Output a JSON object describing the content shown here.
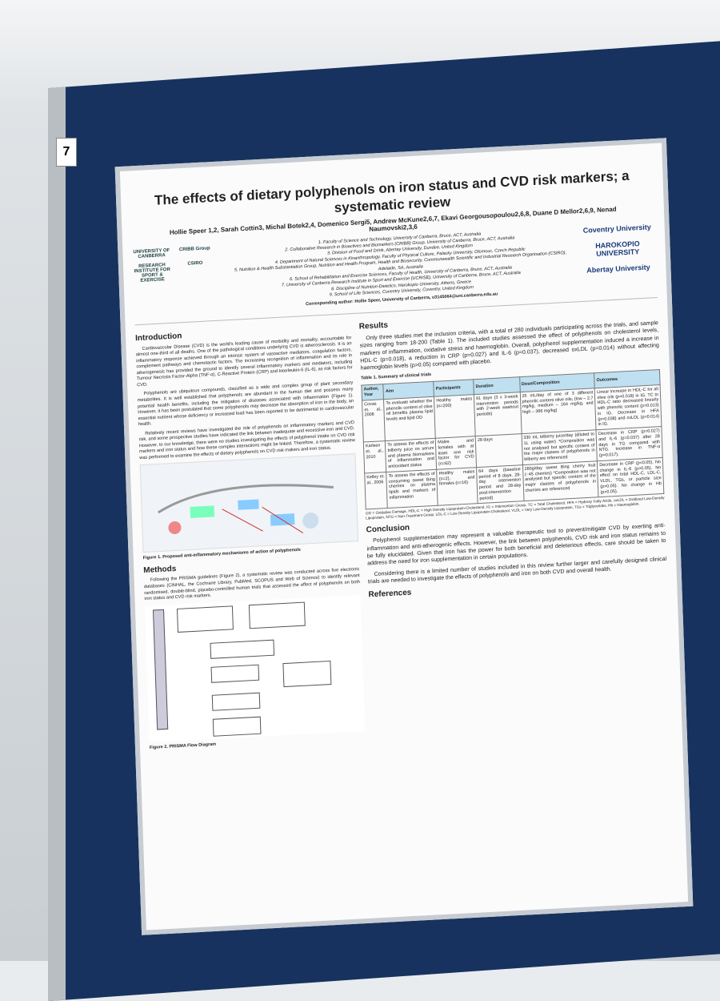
{
  "board_number": "7",
  "header": {
    "title": "The effects of dietary polyphenols on iron status and CVD risk markers; a systematic review",
    "authors": "Hollie Speer 1,2, Sarah Cottin3, Michal Botek2,4, Domenico Sergi5, Andrew McKune2,6,7, Ekavi Georgousopoulou2,6,8, Duane D Mellor2,6,9, Nenad Naumovski2,3,6",
    "affiliations": [
      "1. Faculty of Science and Technology, University of Canberra, Bruce, ACT, Australia",
      "2. Collaborative Research in Bioactives and Biomarkers (CRIBB) Group, University of Canberra, Bruce, ACT, Australia",
      "3. Division of Food and Drink, Abertay University, Dundee, United Kingdom",
      "4. Department of Natural Sciences in Kinanthropology, Faculty of Physical Culture, Palacky University, Olomouc, Czech Republic",
      "5. Nutrition & Health Substantiation Group, Nutrition and Health Program, Health and Biosecurity, Commonwealth Scientific and Industrial Research Organisation (CSIRO), Adelaide, SA, Australia",
      "6. School of Rehabilitation and Exercise Sciences, Faculty of Health, University of Canberra, Bruce, ACT, Australia",
      "7. University of Canberra Research Institute in Sport and Exercise (UCRISE), University of Canberra, Bruce, ACT, Australia",
      "8. Discipline of Nutrition-Dietetics, Harokopio University, Athens, Greece",
      "9. School of Life Sciences, Coventry University, Coventry, United Kingdom"
    ],
    "corresponding": "Corresponding author: Hollie Speer, University of Canberra, u3145064@uni.canberra.edu.au",
    "logos_left": [
      "UNIVERSITY OF CANBERRA",
      "CRIBB Group",
      "RESEARCH INSTITUTE FOR SPORT & EXERCISE",
      "CSIRO"
    ],
    "logos_right": [
      "Coventry University",
      "HAROKOPIO UNIVERSITY",
      "Abertay University"
    ]
  },
  "introduction": {
    "heading": "Introduction",
    "paragraphs": [
      "Cardiovascular Disease (CVD) is the world's leading cause of morbidity and mortality, accountable for almost one-third of all deaths. One of the pathological conditions underlying CVD is atherosclerosis. It is an inflammatory response achieved through an intrinsic system of vasoactive mediators, coagulation factors, complement pathways and chemotactic factors. The increasing recognition of inflammation and its role in atherogenesis has provided the ground to identify several inflammatory markers and mediators, including Tumour Necrosis Factor-Alpha (TNF-α), C-Reactive Protein (CRP) and Interleukin-6 (IL-6), as risk factors for CVD.",
      "Polyphenols are ubiquitous compounds, classified as a wide and complex group of plant secondary metabolites. It is well established that polyphenols are abundant in the human diet and possess many potential health benefits, including the mitigation of diseases associated with inflammation (Figure 1). However, it has been postulated that some polyphenols may decrease the absorption of iron in the body, an essential nutrient whose deficiency or increased load has been reported to be detrimental to cardiovascular health.",
      "Relatively recent reviews have investigated the role of polyphenols on inflammatory markers and CVD risk, and some prospective studies have indicated the link between inadequate and excessive iron and CVD. However, to our knowledge, there were no studies investigating the effects of polyphenol intake on CVD risk markers and iron status and how these complex interactions might be linked. Therefore, a systematic review was performed to examine the effects of dietary polyphenols on CVD risk makers and iron status."
    ]
  },
  "figure1": {
    "caption": "Figure 1. Proposed anti-inflammatory mechanisms of action of polyphenols"
  },
  "methods": {
    "heading": "Methods",
    "paragraph": "Following the PRISMA guidelines (Figure 2), a systematic review was conducted across five electronic databases (CINHAL, the Cochrane Library, PubMed, SCOPUS and Web of Science) to identify relevant randomised, double-blind, placebo-controlled human trials that assessed the effect of polyphenols on both iron status and CVD risk markers."
  },
  "figure2": {
    "caption": "Figure 2. PRISMA Flow Diagram"
  },
  "results": {
    "heading": "Results",
    "paragraph": "Only three studies met the inclusion criteria, with a total of 280 individuals participating across the trials, and sample sizes ranging from 18-200 (Table 1). The included studies assessed the effect of polyphenols on cholesterol levels, markers of inflammation, oxidative stress and haemoglobin. Overall, polyphenol supplementation induced a increase in HDL-C (p=0.018), a reduction in CRP (p=0.027) and IL-6 (p=0.037), decreased oxLDL (p=0.014) without affecting haemoglobin levels (p>0.05) compared with placebo."
  },
  "table": {
    "caption": "Table 1. Summary of clinical trials",
    "headers": [
      "Author, Year",
      "Aim",
      "Participants",
      "Duration",
      "Dose/Composition",
      "Outcomes"
    ],
    "rows": [
      [
        "Covas et. al., 2006",
        "To evaluate whether the phenolic content of olive oil benefits plasma lipid levels and lipid OD",
        "Healthy males (n=200)",
        "91 days (3 x 3-week intervention periods with 2-week washout periods)",
        "25 mL/day of one of 3 different phenolic content olive oils; (low – 2.7 mg/kg, medium – 164 mg/kg, and high – 366 mg/kg)",
        "Linear increase in HDL-C for all olive oils (p=0.018) in IG. TC to HDL-C ratio decreased linearly with phenolic content (p=0.013) in IG. Decrease in HFA (p=0.038) and oxLDL (p=0.014) in IG."
      ],
      [
        "Karlsen et. al., 2010",
        "To assess the effects of bilberry juice on serum and plasma biomarkers of inflammation and antioxidant status",
        "Males and females with at least one risk factor for CVD (n=62)",
        "28 days",
        "330 mL bilberry juice/day (diluted to 1L using water) *Composition was not analysed but specific content of the major classes of polyphenols in bilberry are referenced",
        "Decrease in CRP (p=0.027) and IL-6 (p=0.037) after 28 days in TG compared with NTG. Increase in TNF-α (p=0.017)."
      ],
      [
        "Kelley et. al., 2006",
        "To assess the effects of consuming sweet Bing cherries on plasma lipids and markers of inflammation",
        "Healthy males (n=2), and females (n=16)",
        "64 days (baseline period of 8 days, 28-day intervention period and 28-day post-intervention period)",
        "280g/day sweet Bing cherry fruit (~45 cherries) *Composition was not analysed but specific content of the major classes of polyphenols in cherries are referenced",
        "Decrease in CRP (p<0.05). No change in IL-6 (p>0.05). No effect on total HDL-C, LDL-C, VLDL, TGs, or particle size (p>0.05). No change in Hb (p>0.05)."
      ]
    ],
    "abbreviations": "OD = Oxidative Damage, HDL-C = High Density Lipoprotein-Cholesterol, IG = Intervention Group, TC = Total Cholesterol, HFA = Hydroxy Fatty Acids, oxLDL = Oxidized Low-Density Lipoprotein, NTG = Non-Treatment Group, LDL-C = Low Density Lipoprotein-Cholesterol, VLDL = Very Low-Density Lipoprotein, TGs = Triglycerides, Hb = Haemoglobin."
  },
  "conclusion": {
    "heading": "Conclusion",
    "paragraphs": [
      "Polyphenol supplementation may represent a valuable therapeutic tool to prevent/mitigate CVD by exerting anti-inflammation and anti-atherogenic effects. However, the link between polyphenols, CVD risk and iron status remains to be fully elucidated. Given that iron has the power for both beneficial and deleterious effects, care should be taken to address the need for iron supplementation in certain populations.",
      "Considering there is a limited number of studies included in this review further larger and carefully designed clinical trials are needed to investigate the effects of polyphenols and iron on both CVD and overall health."
    ]
  },
  "references": {
    "heading": "References"
  }
}
